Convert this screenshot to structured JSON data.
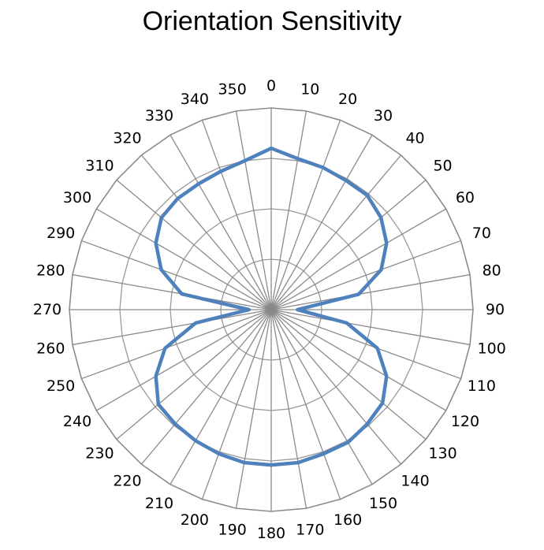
{
  "chart_data": {
    "type": "radar",
    "title": "Orientation Sensitivity",
    "categories": [
      "0",
      "10",
      "20",
      "30",
      "40",
      "50",
      "60",
      "70",
      "80",
      "90",
      "100",
      "110",
      "120",
      "130",
      "140",
      "150",
      "160",
      "170",
      "180",
      "190",
      "200",
      "210",
      "220",
      "230",
      "240",
      "250",
      "260",
      "270",
      "280",
      "290",
      "300",
      "310",
      "320",
      "330",
      "340",
      "350"
    ],
    "series": [
      {
        "values": [
          0.8,
          0.76,
          0.75,
          0.74,
          0.74,
          0.71,
          0.66,
          0.58,
          0.44,
          0.13,
          0.38,
          0.56,
          0.66,
          0.72,
          0.74,
          0.76,
          0.76,
          0.77,
          0.77,
          0.77,
          0.76,
          0.75,
          0.74,
          0.73,
          0.66,
          0.56,
          0.38,
          0.11,
          0.45,
          0.58,
          0.66,
          0.71,
          0.72,
          0.72,
          0.73,
          0.75
        ],
        "color": "#4F81BD"
      }
    ],
    "rlim": [
      0,
      1
    ],
    "grid": true,
    "legend": "none"
  }
}
